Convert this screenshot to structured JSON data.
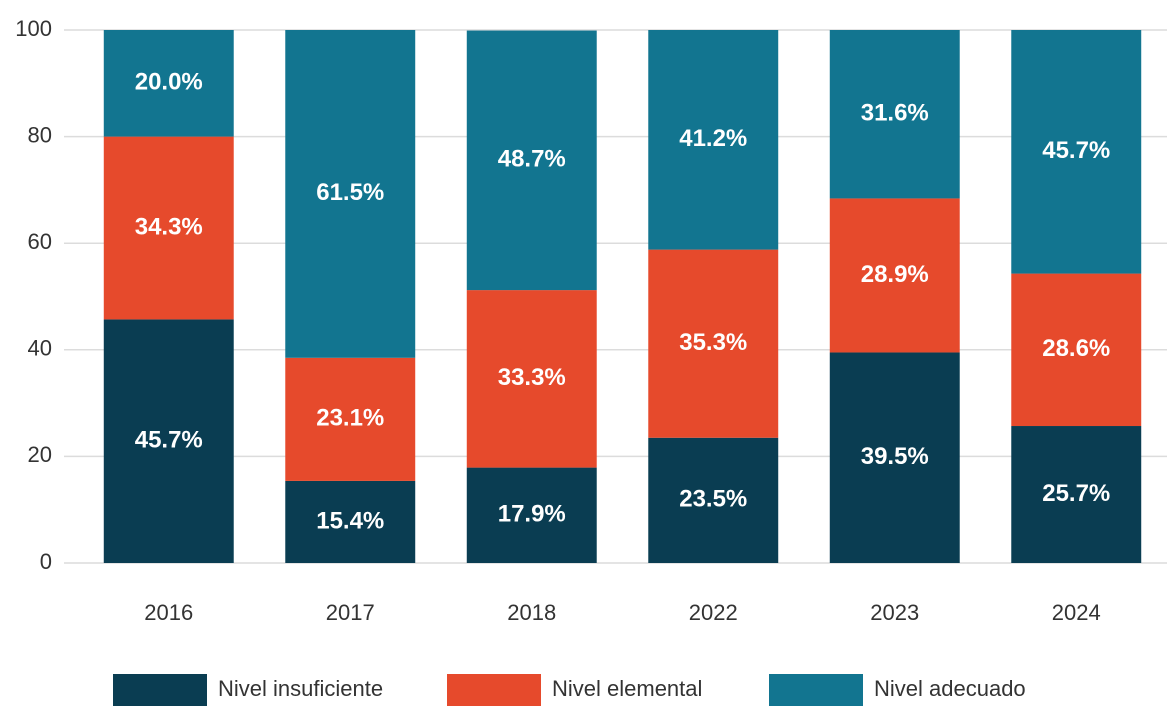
{
  "chart_data": {
    "type": "stacked_bar",
    "categories": [
      "2016",
      "2017",
      "2018",
      "2022",
      "2023",
      "2024"
    ],
    "series": [
      {
        "name": "Nivel insuficiente",
        "color": "#0a3d52",
        "values": [
          45.7,
          15.4,
          17.9,
          23.5,
          39.5,
          25.7
        ],
        "value_labels": [
          "45.7%",
          "15.4%",
          "17.9%",
          "23.5%",
          "39.5%",
          "25.7%"
        ]
      },
      {
        "name": "Nivel elemental",
        "color": "#e64a2c",
        "values": [
          34.3,
          23.1,
          33.3,
          35.3,
          28.9,
          28.6
        ],
        "value_labels": [
          "34.3%",
          "23.1%",
          "33.3%",
          "35.3%",
          "28.9%",
          "28.6%"
        ]
      },
      {
        "name": "Nivel adecuado",
        "color": "#127590",
        "values": [
          20.0,
          61.5,
          48.7,
          41.2,
          31.6,
          45.7
        ],
        "value_labels": [
          "20.0%",
          "61.5%",
          "48.7%",
          "41.2%",
          "31.6%",
          "45.7%"
        ]
      }
    ],
    "ylim": [
      0,
      100
    ],
    "yticks": [
      0,
      20,
      40,
      60,
      80,
      100
    ],
    "grid": true,
    "legend": "bottom"
  }
}
